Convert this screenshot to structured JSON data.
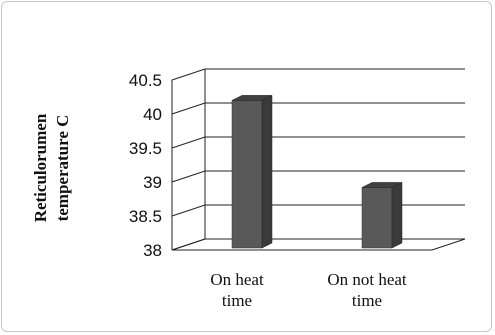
{
  "chart_data": {
    "type": "bar",
    "ylabel_lines": [
      "Reticulorumen",
      "temperature C"
    ],
    "categories": [
      {
        "lines": [
          "On heat",
          "time"
        ]
      },
      {
        "lines": [
          "On not heat",
          "time"
        ]
      }
    ],
    "values": [
      40.2,
      38.92
    ],
    "ylim": [
      38,
      40.5
    ],
    "yticks": [
      "38",
      "38.5",
      "39",
      "39.5",
      "40",
      "40.5"
    ],
    "grid": true,
    "legend": "none",
    "bar_color": "#595959",
    "bar_side_color": "#3a3a3a",
    "bar_top_color": "#404040"
  }
}
